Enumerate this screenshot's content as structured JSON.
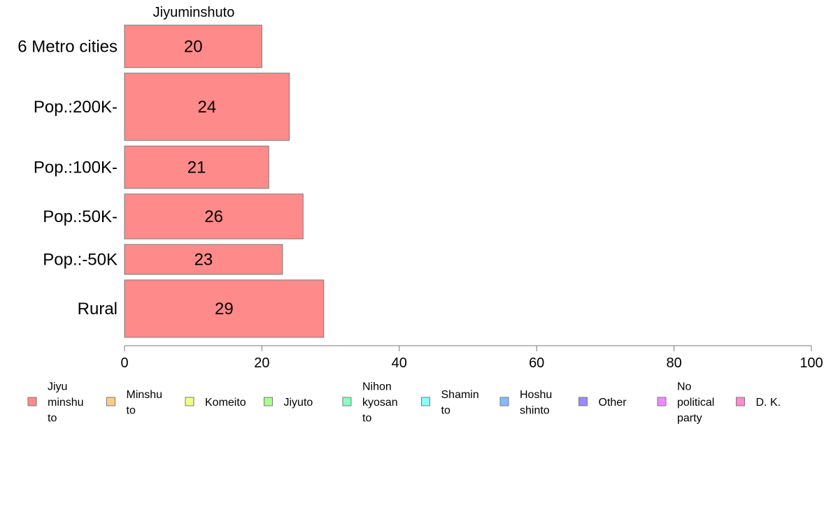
{
  "chart_data": {
    "type": "bar",
    "orientation": "horizontal",
    "panel_title": "Jiyuminshuto",
    "categories": [
      "6 Metro cities",
      "Pop.:200K-",
      "Pop.:100K-",
      "Pop.:50K-",
      "Pop.:-50K",
      "Rural"
    ],
    "category_weights": [
      0.17,
      0.27,
      0.17,
      0.18,
      0.12,
      0.23
    ],
    "series": [
      {
        "name": "Jiyu minshu to",
        "color": "#ff8a8a",
        "values": [
          20,
          24,
          21,
          26,
          23,
          29
        ]
      }
    ],
    "xlim": [
      0,
      100
    ],
    "xticks": [
      0,
      20,
      40,
      60,
      80,
      100
    ],
    "grid": false,
    "legend_position": "bottom",
    "legend": [
      {
        "lines": [
          "Jiyu",
          "minshu",
          "to"
        ],
        "color": "#ff8a8a"
      },
      {
        "lines": [
          "Minshu",
          "to"
        ],
        "color": "#ffc98a"
      },
      {
        "lines": [
          "Komeito"
        ],
        "color": "#f0ff8a"
      },
      {
        "lines": [
          "Jiyuto"
        ],
        "color": "#a8ff8a"
      },
      {
        "lines": [
          "Nihon",
          "kyosan",
          "to"
        ],
        "color": "#8affc4"
      },
      {
        "lines": [
          "Shamin",
          "to"
        ],
        "color": "#8affff"
      },
      {
        "lines": [
          "Hoshu",
          "shinto"
        ],
        "color": "#8ab8ff"
      },
      {
        "lines": [
          "Other"
        ],
        "color": "#9a8aff"
      },
      {
        "lines": [
          "No",
          "political",
          "party"
        ],
        "color": "#f08aff"
      },
      {
        "lines": [
          "D. K."
        ],
        "color": "#ff8ad0"
      }
    ]
  }
}
